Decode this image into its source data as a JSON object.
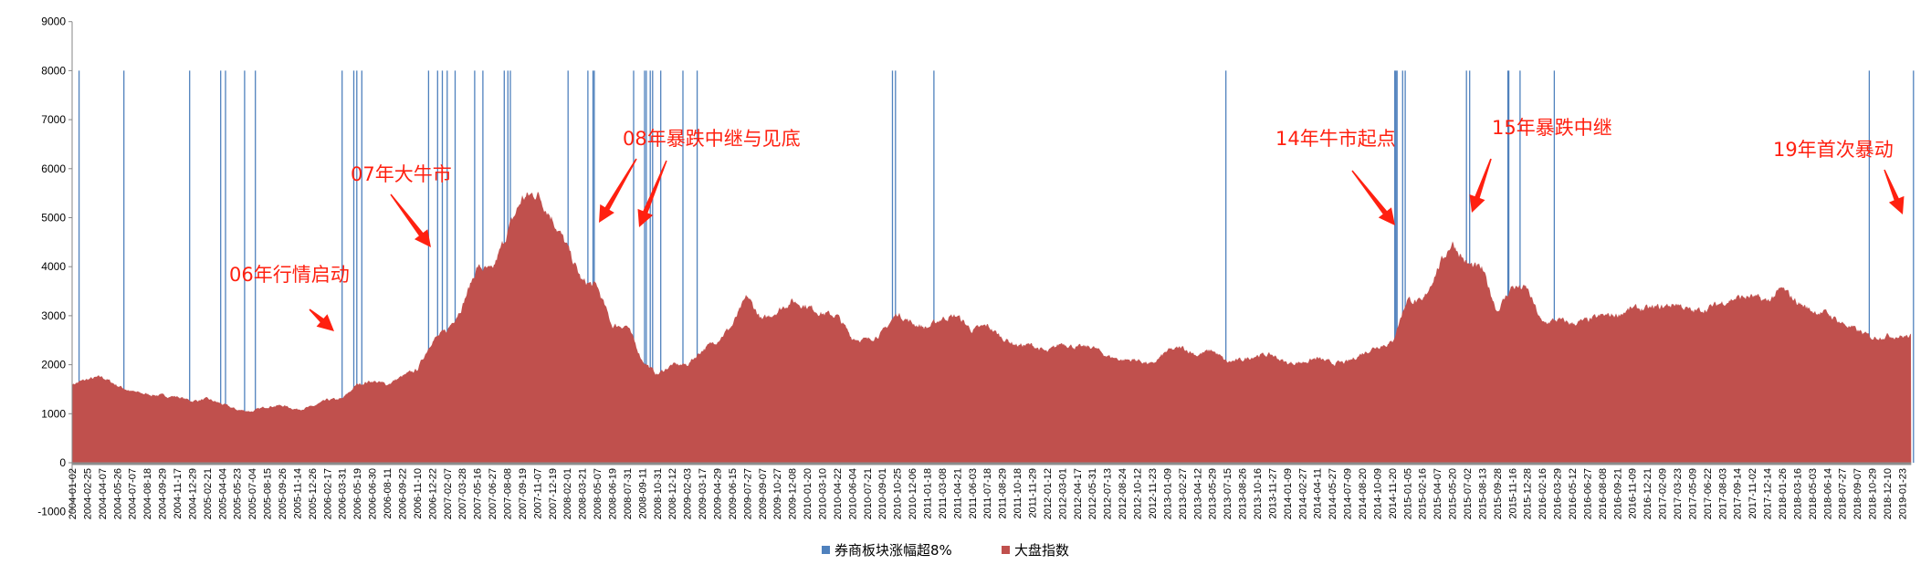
{
  "chart_data": {
    "type": "area",
    "title": "",
    "xlabel": "",
    "ylabel": "",
    "ylim": [
      -1000,
      9000
    ],
    "yticks": [
      9000,
      8000,
      7000,
      6000,
      5000,
      4000,
      3000,
      2000,
      1000,
      0,
      -1000
    ],
    "grid": false,
    "legend_position": "bottom",
    "colors": {
      "event": "#4f81bd",
      "index": "#c0504d",
      "annotation": "#ff2010"
    },
    "categories": [
      "2004-01-02",
      "2004-02-25",
      "2004-04-07",
      "2004-05-26",
      "2004-07-07",
      "2004-08-18",
      "2004-09-29",
      "2004-11-17",
      "2004-12-29",
      "2005-02-21",
      "2005-04-04",
      "2005-05-23",
      "2005-07-04",
      "2005-08-15",
      "2005-09-26",
      "2005-11-14",
      "2005-12-26",
      "2006-02-17",
      "2006-03-31",
      "2006-05-19",
      "2006-06-30",
      "2006-08-11",
      "2006-09-22",
      "2006-11-10",
      "2006-12-22",
      "2007-02-07",
      "2007-03-28",
      "2007-05-16",
      "2007-06-27",
      "2007-08-08",
      "2007-09-19",
      "2007-11-07",
      "2007-12-19",
      "2008-02-01",
      "2008-03-21",
      "2008-05-07",
      "2008-06-19",
      "2008-07-31",
      "2008-09-11",
      "2008-10-31",
      "2008-12-12",
      "2009-02-03",
      "2009-03-17",
      "2009-04-29",
      "2009-06-15",
      "2009-07-27",
      "2009-09-07",
      "2009-10-27",
      "2009-12-08",
      "2010-01-20",
      "2010-03-10",
      "2010-04-22",
      "2010-06-04",
      "2010-07-21",
      "2010-09-01",
      "2010-10-25",
      "2010-12-06",
      "2011-01-18",
      "2011-03-08",
      "2011-04-21",
      "2011-06-03",
      "2011-07-18",
      "2011-08-29",
      "2011-10-18",
      "2011-11-29",
      "2012-01-12",
      "2012-03-01",
      "2012-04-17",
      "2012-05-31",
      "2012-07-13",
      "2012-08-24",
      "2012-10-12",
      "2012-11-23",
      "2013-01-09",
      "2013-02-27",
      "2013-04-12",
      "2013-05-29",
      "2013-07-15",
      "2013-08-26",
      "2013-10-16",
      "2013-11-27",
      "2014-01-09",
      "2014-02-27",
      "2014-04-11",
      "2014-05-27",
      "2014-07-09",
      "2014-08-20",
      "2014-10-09",
      "2014-11-20",
      "2015-01-05",
      "2015-02-16",
      "2015-04-07",
      "2015-05-20",
      "2015-07-02",
      "2015-08-13",
      "2015-09-28",
      "2015-11-16",
      "2015-12-28",
      "2016-02-16",
      "2016-03-29",
      "2016-05-12",
      "2016-06-27",
      "2016-08-08",
      "2016-09-21",
      "2016-11-09",
      "2016-12-21",
      "2017-02-09",
      "2017-03-23",
      "2017-05-09",
      "2017-06-22",
      "2017-08-03",
      "2017-09-14",
      "2017-11-02",
      "2017-12-14",
      "2018-01-26",
      "2018-03-16",
      "2018-05-03",
      "2018-06-14",
      "2018-07-27",
      "2018-09-07",
      "2018-10-29",
      "2018-12-10",
      "2019-01-23"
    ],
    "series": [
      {
        "name": "大盘指数",
        "values": [
          1600,
          1700,
          1750,
          1580,
          1450,
          1400,
          1370,
          1350,
          1260,
          1300,
          1200,
          1080,
          1050,
          1150,
          1170,
          1090,
          1140,
          1280,
          1300,
          1600,
          1670,
          1600,
          1760,
          1900,
          2500,
          2700,
          3200,
          4000,
          3900,
          4700,
          5400,
          5500,
          5000,
          4400,
          3700,
          3600,
          2800,
          2800,
          2100,
          1800,
          2000,
          2000,
          2300,
          2500,
          2800,
          3400,
          2900,
          3100,
          3300,
          3200,
          3050,
          3000,
          2550,
          2500,
          2650,
          3050,
          2850,
          2750,
          2950,
          3000,
          2700,
          2800,
          2550,
          2400,
          2400,
          2250,
          2450,
          2350,
          2370,
          2180,
          2100,
          2100,
          2000,
          2280,
          2350,
          2200,
          2300,
          2050,
          2100,
          2200,
          2200,
          2030,
          2050,
          2130,
          2030,
          2050,
          2230,
          2380,
          2450,
          3350,
          3250,
          3950,
          4500,
          4050,
          3950,
          3100,
          3600,
          3550,
          2840,
          2920,
          2840,
          2900,
          3000,
          3020,
          3150,
          3140,
          3180,
          3250,
          3080,
          3150,
          3270,
          3370,
          3390,
          3290,
          3550,
          3280,
          3100,
          3050,
          2850,
          2700,
          2550,
          2600,
          2580
        ]
      },
      {
        "name": "券商板块涨幅超8%",
        "bar_value": 8000,
        "dates": [
          "2004-01-27",
          "2004-06-14",
          "2004-12-22",
          "2005-03-31",
          "2005-04-15",
          "2005-06-13",
          "2005-07-13",
          "2006-03-31",
          "2006-05-08",
          "2006-05-18",
          "2006-06-01",
          "2006-12-12",
          "2007-01-08",
          "2007-01-23",
          "2007-02-07",
          "2007-03-05",
          "2007-05-08",
          "2007-06-01",
          "2007-07-31",
          "2007-08-10",
          "2007-08-17",
          "2008-02-04",
          "2008-04-08",
          "2008-04-24",
          "2008-04-28",
          "2008-08-18",
          "2008-09-19",
          "2008-09-25",
          "2008-10-08",
          "2008-10-16",
          "2008-11-10",
          "2009-01-19",
          "2009-03-03",
          "2010-10-08",
          "2010-10-19",
          "2011-02-09",
          "2013-07-11",
          "2014-11-28",
          "2014-12-01",
          "2014-12-05",
          "2014-12-22",
          "2014-12-30",
          "2015-06-30",
          "2015-07-09",
          "2015-11-02",
          "2015-11-05",
          "2015-12-08",
          "2016-03-21",
          "2018-10-19",
          "2019-02-25"
        ]
      }
    ],
    "legend": [
      "券商板块涨幅超8%",
      "大盘指数"
    ],
    "annotations": [
      {
        "text": "06年行情启动",
        "date": "2006-03-31"
      },
      {
        "text": "07年大牛市",
        "date": "2006-12-12"
      },
      {
        "text": "08年暴跌中继与见底",
        "date": "2008-05-07"
      },
      {
        "text": "14年牛市起点",
        "date": "2014-11-28"
      },
      {
        "text": "15年暴跌中继",
        "date": "2015-07-09"
      },
      {
        "text": "19年首次暴动",
        "date": "2019-02-25"
      }
    ]
  }
}
